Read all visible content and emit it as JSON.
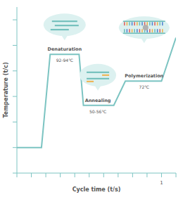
{
  "chart_data": {
    "type": "line",
    "x_label": "Cycle time (t/s)",
    "y_label": "Temperature (t/c)",
    "x": [
      0,
      1.7,
      2.3,
      4.3,
      4.6,
      6.7,
      7.5,
      10,
      11
    ],
    "values": [
      20,
      20,
      93,
      93,
      53,
      53,
      72,
      72,
      106
    ],
    "color": "#7cc4c2",
    "xlim": [
      0,
      11
    ],
    "xticks": [
      0,
      1,
      2,
      3,
      4,
      5,
      6,
      7,
      8,
      9,
      10,
      11
    ],
    "ylim": [
      0,
      130
    ],
    "yticks": [
      0,
      20,
      40,
      60,
      80,
      100,
      120
    ],
    "tick_labels": false,
    "grid": false,
    "phases": [
      {
        "label": "Denaturation",
        "temperature": "92-94℃",
        "x": 3.3,
        "y": 93
      },
      {
        "label": "Annealing",
        "temperature": "50-56℃",
        "x": 5.6,
        "y": 53
      },
      {
        "label": "Polymerization",
        "temperature": "72℃",
        "x": 8.8,
        "y": 72
      }
    ],
    "annotations": [
      {
        "text": "1",
        "x": 10,
        "y": 0
      }
    ]
  }
}
